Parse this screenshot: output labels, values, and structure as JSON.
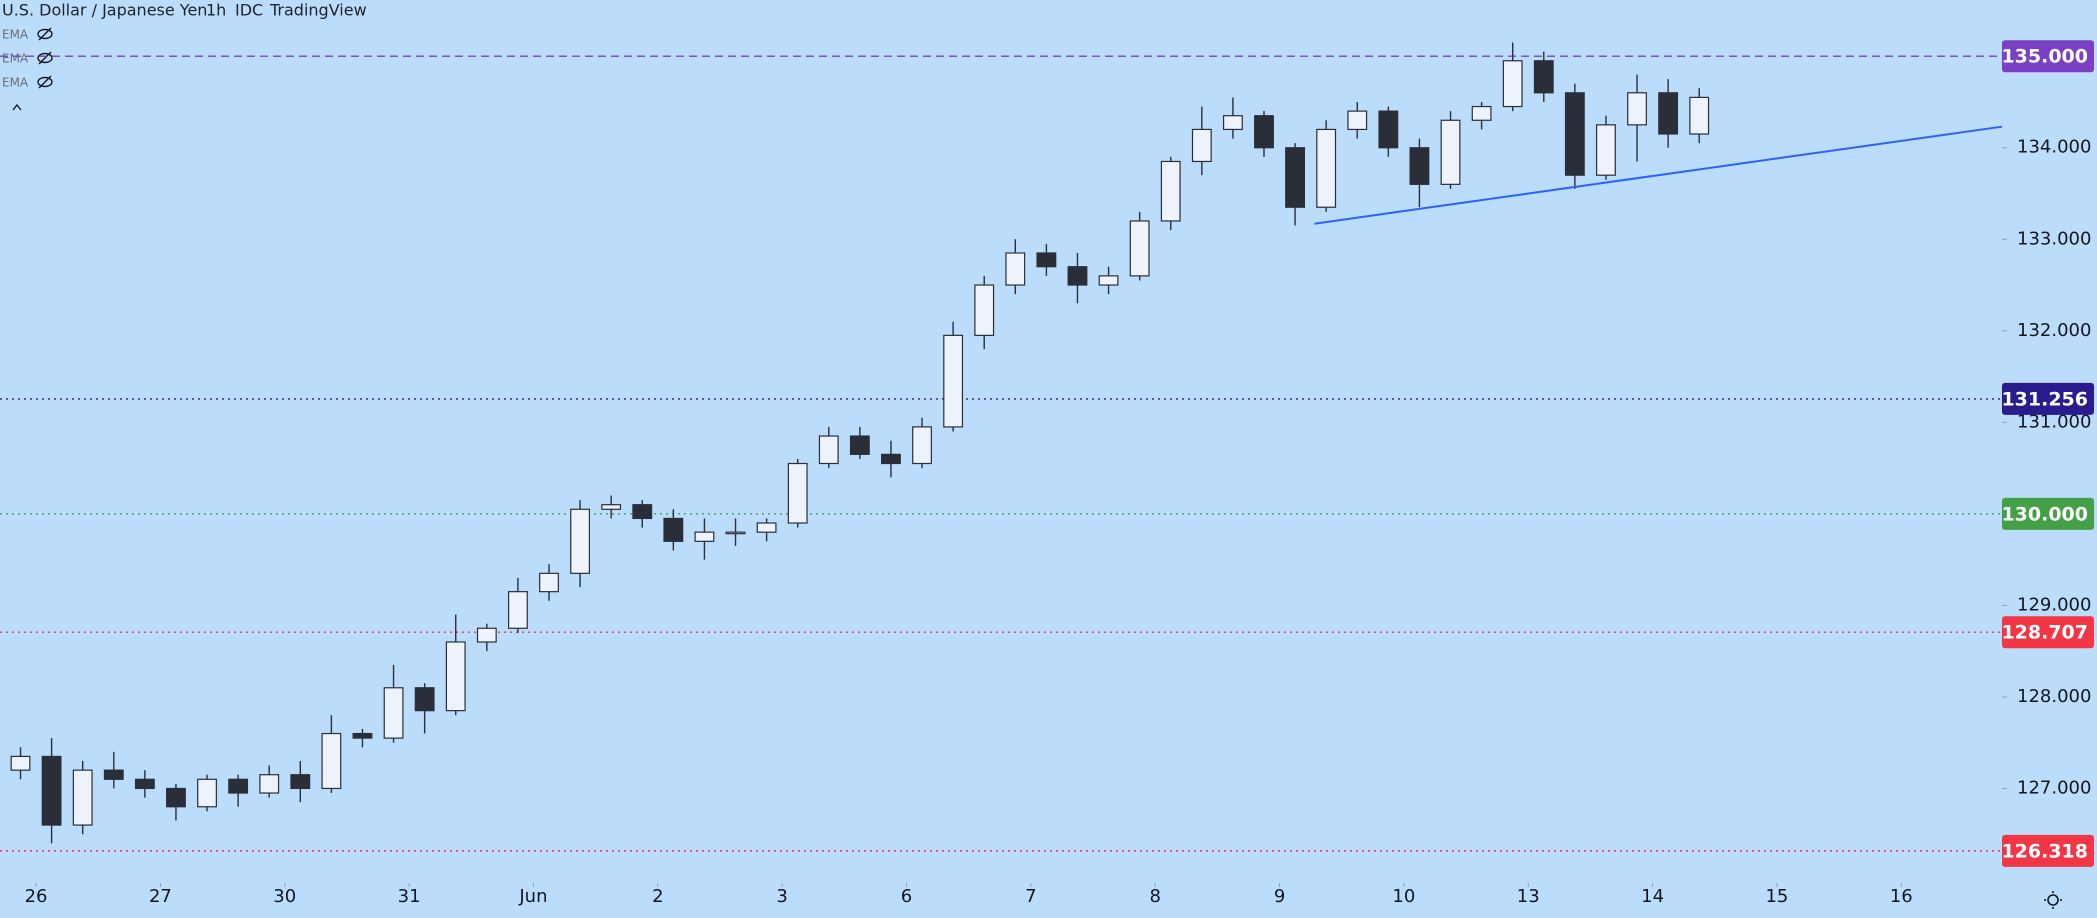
{
  "chart_data": {
    "type": "candlestick",
    "title": "U.S. Dollar / Japanese Yen",
    "interval": "1h",
    "source": "IDC",
    "brand": "TradingView",
    "indicators": [
      "EMA",
      "EMA",
      "EMA"
    ],
    "x": [
      -0.125,
      0.125,
      0.375,
      0.625,
      0.875,
      1.125,
      1.375,
      1.625,
      1.875,
      2.125,
      2.375,
      2.625,
      2.875,
      3.125,
      3.375,
      3.625,
      3.875,
      4.125,
      4.375,
      4.625,
      4.875,
      5.125,
      5.375,
      5.625,
      5.875,
      6.125,
      6.375,
      6.625,
      6.875,
      7.125,
      7.375,
      7.625,
      7.875,
      8.125,
      8.375,
      8.625,
      8.875,
      9.125,
      9.375,
      9.625,
      9.875,
      10.125,
      10.375,
      10.625,
      10.875,
      11.125,
      11.375,
      11.625,
      11.875,
      12.125,
      12.375,
      12.625,
      12.875,
      13.125,
      13.375
    ],
    "open": [
      127.2,
      127.35,
      126.6,
      127.2,
      127.1,
      127.0,
      126.8,
      127.1,
      126.95,
      127.15,
      127.0,
      127.6,
      127.55,
      128.1,
      127.85,
      128.6,
      128.75,
      129.15,
      129.35,
      130.05,
      130.1,
      129.95,
      129.7,
      129.8,
      129.8,
      129.9,
      130.55,
      130.85,
      130.65,
      130.55,
      130.95,
      131.95,
      132.5,
      132.85,
      132.7,
      132.5,
      132.6,
      133.2,
      133.85,
      134.2,
      134.35,
      134.0,
      133.35,
      134.2,
      134.4,
      134.0,
      133.6,
      134.3,
      134.45,
      134.95,
      134.6,
      133.7,
      134.25,
      134.6,
      134.15
    ],
    "high": [
      127.45,
      127.55,
      127.3,
      127.4,
      127.2,
      127.05,
      127.15,
      127.15,
      127.25,
      127.3,
      127.8,
      127.65,
      128.35,
      128.15,
      128.9,
      128.8,
      129.3,
      129.45,
      130.15,
      130.2,
      130.15,
      130.05,
      129.95,
      129.95,
      129.95,
      130.6,
      130.95,
      130.95,
      130.8,
      131.05,
      132.1,
      132.6,
      133.0,
      132.95,
      132.85,
      132.7,
      133.3,
      133.9,
      134.45,
      134.55,
      134.4,
      134.05,
      134.3,
      134.5,
      134.45,
      134.1,
      134.4,
      134.5,
      135.15,
      135.05,
      134.7,
      134.35,
      134.8,
      134.75,
      134.65
    ],
    "low": [
      127.1,
      126.4,
      126.5,
      127.0,
      126.9,
      126.65,
      126.75,
      126.8,
      126.9,
      126.85,
      126.95,
      127.45,
      127.5,
      127.6,
      127.8,
      128.5,
      128.7,
      129.05,
      129.2,
      129.95,
      129.85,
      129.6,
      129.5,
      129.65,
      129.7,
      129.85,
      130.5,
      130.6,
      130.4,
      130.5,
      130.9,
      131.8,
      132.4,
      132.6,
      132.3,
      132.4,
      132.55,
      133.1,
      133.7,
      134.1,
      133.9,
      133.15,
      133.3,
      134.1,
      133.9,
      133.35,
      133.55,
      134.2,
      134.4,
      134.5,
      133.55,
      133.65,
      133.85,
      134.0,
      134.05
    ],
    "close": [
      127.35,
      126.6,
      127.2,
      127.1,
      127.0,
      126.8,
      127.1,
      126.95,
      127.15,
      127.0,
      127.6,
      127.55,
      128.1,
      127.85,
      128.6,
      128.75,
      129.15,
      129.35,
      130.05,
      130.1,
      129.95,
      129.7,
      129.8,
      129.8,
      129.9,
      130.55,
      130.85,
      130.65,
      130.55,
      130.95,
      131.95,
      132.5,
      132.85,
      132.7,
      132.5,
      132.6,
      133.2,
      133.85,
      134.2,
      134.35,
      134.0,
      133.35,
      134.2,
      134.4,
      134.0,
      133.6,
      134.3,
      134.45,
      134.95,
      134.6,
      133.7,
      134.25,
      134.6,
      134.15,
      134.55
    ],
    "up_color": "#eef2fa",
    "down_color": "#2a2e39",
    "wick_color": "#2a2e39",
    "xlim": [
      -0.29,
      15.81
    ],
    "ylim": [
      125.967,
      135.614
    ],
    "xticks": [
      {
        "value": 0,
        "label": "26"
      },
      {
        "value": 1,
        "label": "27"
      },
      {
        "value": 2,
        "label": "30"
      },
      {
        "value": 3,
        "label": "31"
      },
      {
        "value": 4,
        "label": "Jun"
      },
      {
        "value": 5,
        "label": "2"
      },
      {
        "value": 6,
        "label": "3"
      },
      {
        "value": 7,
        "label": "6"
      },
      {
        "value": 8,
        "label": "7"
      },
      {
        "value": 9,
        "label": "8"
      },
      {
        "value": 10,
        "label": "9"
      },
      {
        "value": 11,
        "label": "10"
      },
      {
        "value": 12,
        "label": "13"
      },
      {
        "value": 13,
        "label": "14"
      },
      {
        "value": 14,
        "label": "15"
      },
      {
        "value": 15,
        "label": "16"
      }
    ],
    "yticks": [
      {
        "value": 127,
        "label": "127.000"
      },
      {
        "value": 128,
        "label": "128.000"
      },
      {
        "value": 129,
        "label": "129.000"
      },
      {
        "value": 130,
        "label": "130.000"
      },
      {
        "value": 131,
        "label": "131.000"
      },
      {
        "value": 132,
        "label": "132.000"
      },
      {
        "value": 133,
        "label": "133.000"
      },
      {
        "value": 134,
        "label": "134.000"
      }
    ],
    "levels": [
      {
        "value": 135,
        "label": "135.000",
        "color": "#7b3fc4",
        "style": "dashed"
      },
      {
        "value": 131.256,
        "label": "131.256",
        "color": "#2a1c8c",
        "style": "dotted"
      },
      {
        "value": 130,
        "label": "130.000",
        "color": "#43a047",
        "style": "dotted"
      },
      {
        "value": 128.707,
        "label": "128.707",
        "color": "#f23645",
        "style": "dotted"
      },
      {
        "value": 126.318,
        "label": "126.318",
        "color": "#f23645",
        "style": "dotted"
      }
    ],
    "trendline": {
      "x": [
        10.28,
        15.81
      ],
      "y": [
        133.17,
        134.23
      ],
      "color": "#2962ff"
    }
  }
}
